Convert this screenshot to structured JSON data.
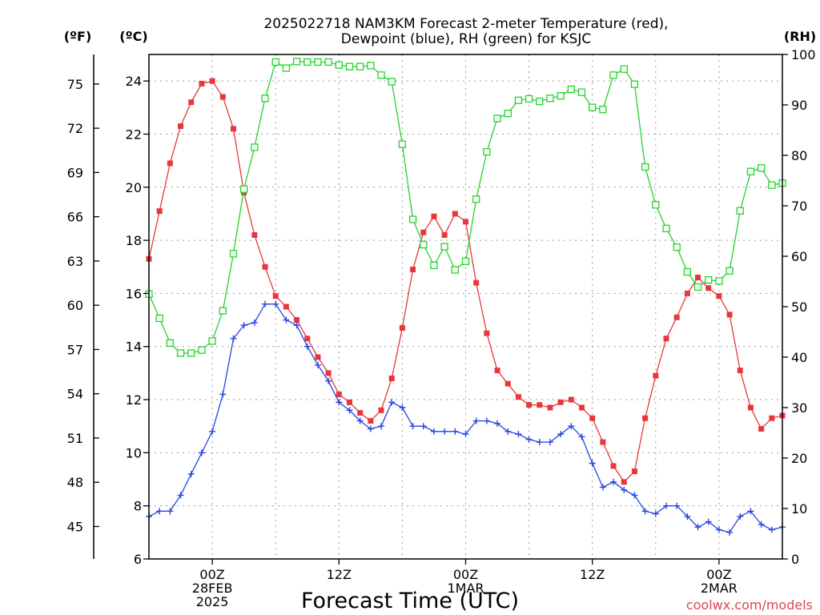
{
  "chart_data": {
    "type": "line",
    "title": "2025022718 NAM3KM Forecast 2-meter Temperature (red),",
    "subtitle": "Dewpoint (blue), RH (green) for KSJC",
    "xlabel": "Forecast Time (UTC)",
    "credit": "coolwx.com/models",
    "y_left_unit_f": "(ºF)",
    "y_left_unit_c": "(ºC)",
    "y_right_unit": "(RH)",
    "x_hour_range": [
      -6,
      54
    ],
    "x_step_hours": 1,
    "x_start_hour": -6,
    "y_c_range": [
      6,
      25
    ],
    "y_rh_range": [
      0,
      100
    ],
    "ticks_c": [
      "6",
      "8",
      "10",
      "12",
      "14",
      "16",
      "18",
      "20",
      "22",
      "24"
    ],
    "ticks_f": [
      "45",
      "48",
      "51",
      "54",
      "57",
      "60",
      "63",
      "66",
      "69",
      "72",
      "75"
    ],
    "ticks_rh": [
      "0",
      "10",
      "20",
      "30",
      "40",
      "50",
      "60",
      "70",
      "80",
      "90",
      "100"
    ],
    "x_ticks": [
      {
        "hour": 0,
        "lines": [
          "00Z",
          "28FEB",
          "2025"
        ]
      },
      {
        "hour": 12,
        "lines": [
          "12Z"
        ]
      },
      {
        "hour": 24,
        "lines": [
          "00Z",
          "1MAR"
        ]
      },
      {
        "hour": 36,
        "lines": [
          "12Z"
        ]
      },
      {
        "hour": 48,
        "lines": [
          "00Z",
          "2MAR"
        ]
      }
    ],
    "grid": true,
    "series": [
      {
        "color": "#e8373c",
        "marker": "filled-square",
        "axis": "celsius",
        "values": [
          17.3,
          19.1,
          20.9,
          22.3,
          23.2,
          23.9,
          24.0,
          23.4,
          22.2,
          19.8,
          18.2,
          17.0,
          15.9,
          15.5,
          15.0,
          14.3,
          13.6,
          13.0,
          12.2,
          11.9,
          11.5,
          11.2,
          11.6,
          12.8,
          14.7,
          16.9,
          18.3,
          18.9,
          18.2,
          19.0,
          18.7,
          16.4,
          14.5,
          13.1,
          12.6,
          12.1,
          11.8,
          11.8,
          11.7,
          11.9,
          12.0,
          11.7,
          11.3,
          10.4,
          9.5,
          8.9,
          9.3,
          11.3,
          12.9,
          14.3,
          15.1,
          16.0,
          16.6,
          16.2,
          15.9,
          15.2,
          13.1,
          11.7,
          10.9,
          11.3,
          11.4
        ]
      },
      {
        "color": "#2844e0",
        "marker": "plus",
        "axis": "celsius",
        "values": [
          7.6,
          7.8,
          7.8,
          8.4,
          9.2,
          10.0,
          10.8,
          12.2,
          14.3,
          14.8,
          14.9,
          15.6,
          15.6,
          15.0,
          14.8,
          14.0,
          13.3,
          12.7,
          11.9,
          11.6,
          11.2,
          10.9,
          11.0,
          11.9,
          11.7,
          11.0,
          11.0,
          10.8,
          10.8,
          10.8,
          10.7,
          11.2,
          11.2,
          11.1,
          10.8,
          10.7,
          10.5,
          10.4,
          10.4,
          10.7,
          11.0,
          10.6,
          9.6,
          8.7,
          8.9,
          8.6,
          8.4,
          7.8,
          7.7,
          8.0,
          8.0,
          7.6,
          7.2,
          7.4,
          7.1,
          7.0,
          7.6,
          7.8,
          7.3,
          7.1,
          7.2
        ]
      },
      {
        "color": "#22d42a",
        "marker": "open-square",
        "axis": "rh",
        "values": [
          52.5,
          47.7,
          42.8,
          40.8,
          40.8,
          41.4,
          43.2,
          49.2,
          60.5,
          73.3,
          81.6,
          91.3,
          98.5,
          97.3,
          98.6,
          98.5,
          98.5,
          98.5,
          97.9,
          97.6,
          97.6,
          97.8,
          95.9,
          94.6,
          82.2,
          67.3,
          62.3,
          58.2,
          61.9,
          57.3,
          59.0,
          71.3,
          80.7,
          87.3,
          88.3,
          90.9,
          91.2,
          90.7,
          91.3,
          91.8,
          93.1,
          92.5,
          89.5,
          89.1,
          95.9,
          97.1,
          94.1,
          77.7,
          70.2,
          65.5,
          61.8,
          56.9,
          53.9,
          55.3,
          55.1,
          57.1,
          69.0,
          76.8,
          77.5,
          74.1,
          74.5
        ]
      }
    ]
  }
}
